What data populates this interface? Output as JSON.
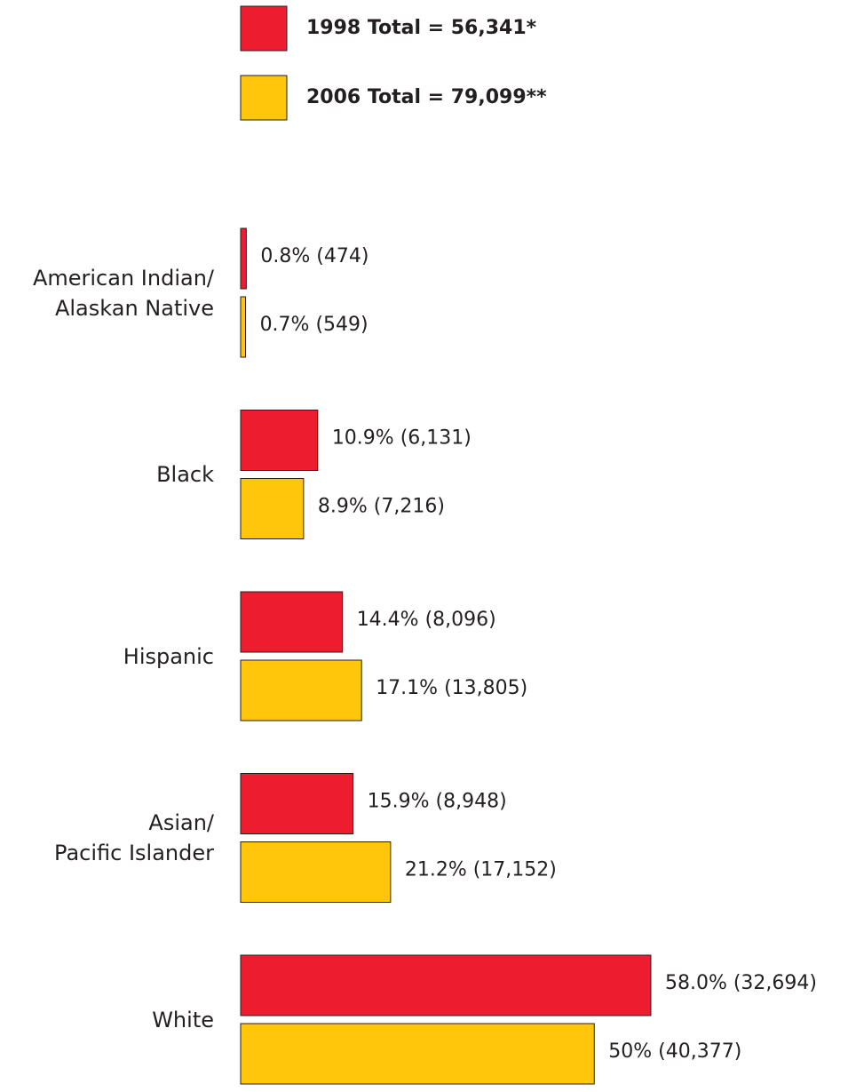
{
  "chart_data": {
    "type": "bar",
    "orientation": "horizontal",
    "categories": [
      "American Indian/\nAlaskan Native",
      "Black",
      "Hispanic",
      "Asian/\nPacific Islander",
      "White"
    ],
    "series": [
      {
        "name": "1998 Total = 56,341*",
        "color": "#ed1c2e",
        "values": [
          0.8,
          10.9,
          14.4,
          15.9,
          58.0
        ],
        "value_labels": [
          "0.8% (474)",
          "10.9% (6,131)",
          "14.4% (8,096)",
          "15.9% (8,948)",
          "58.0% (32,694)"
        ]
      },
      {
        "name": "2006 Total = 79,099**",
        "color": "#ffc60b",
        "values": [
          0.7,
          8.9,
          17.1,
          21.2,
          50
        ],
        "value_labels": [
          "0.7% (549)",
          "8.9% (7,216)",
          "17.1% (13,805)",
          "21.2% (17,152)",
          "50% (40,377)"
        ]
      }
    ]
  }
}
